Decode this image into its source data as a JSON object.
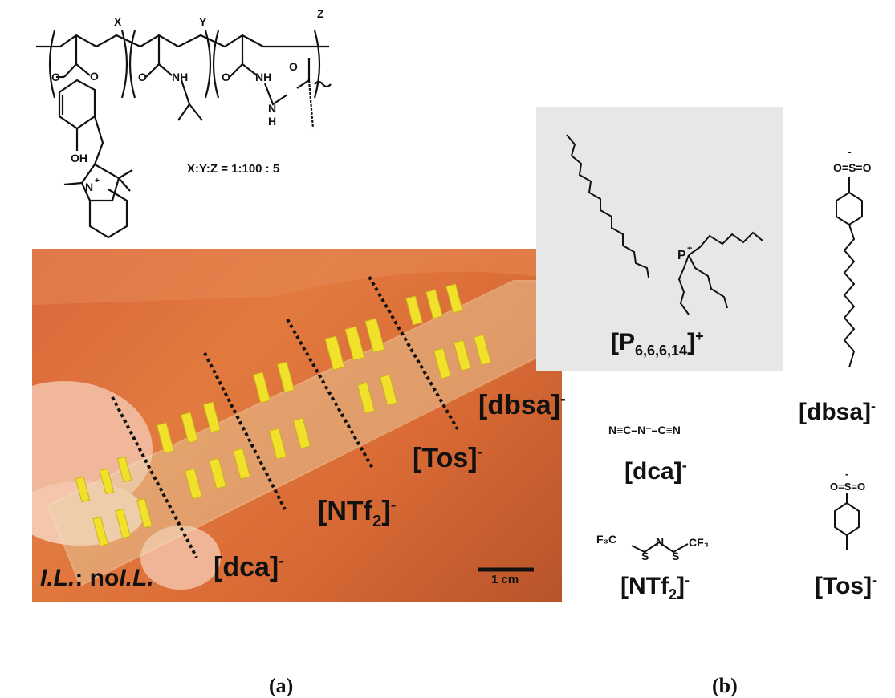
{
  "polymer": {
    "subscripts": [
      "X",
      "Y",
      "Z"
    ],
    "atoms": [
      "O",
      "O",
      "O",
      "NH",
      "O",
      "NH",
      "O",
      "N",
      "H",
      "OH",
      "N",
      "+"
    ],
    "ratio": "X:Y:Z = 1:100 : 5"
  },
  "photo": {
    "il_prefix": "I.L.",
    "il_colon": ": no",
    "il_suffix": "I.L.",
    "scale_bar": "1 cm",
    "slide_color": "#e8d6a8",
    "well_color": "#f2e12a",
    "background_color": "#d9663a"
  },
  "anion_labels_photo": {
    "dca": "[dca]",
    "ntf2_main": "[NTf",
    "ntf2_sub": "2",
    "ntf2_close": "]",
    "tos": "[Tos]",
    "dbsa": "[dbsa]",
    "minus": "-"
  },
  "cation": {
    "label_main": "[P",
    "label_sub": "6,6,6,14",
    "label_close": "]",
    "charge": "+",
    "atom": "P",
    "atom_charge": "+"
  },
  "anions_panel": {
    "dca_label": "[dca]",
    "dca_structure": "N≡C–N⁻–C≡N",
    "ntf2_label": "[NTf",
    "ntf2_sub": "2",
    "ntf2_close": "]",
    "ntf2_structure_left": "F₃C",
    "ntf2_structure_right": "CF₃",
    "dbsa_label": "[dbsa]",
    "tos_label": "[Tos]",
    "minus": "-"
  },
  "panels": {
    "a": "(a)",
    "b": "(b)"
  }
}
